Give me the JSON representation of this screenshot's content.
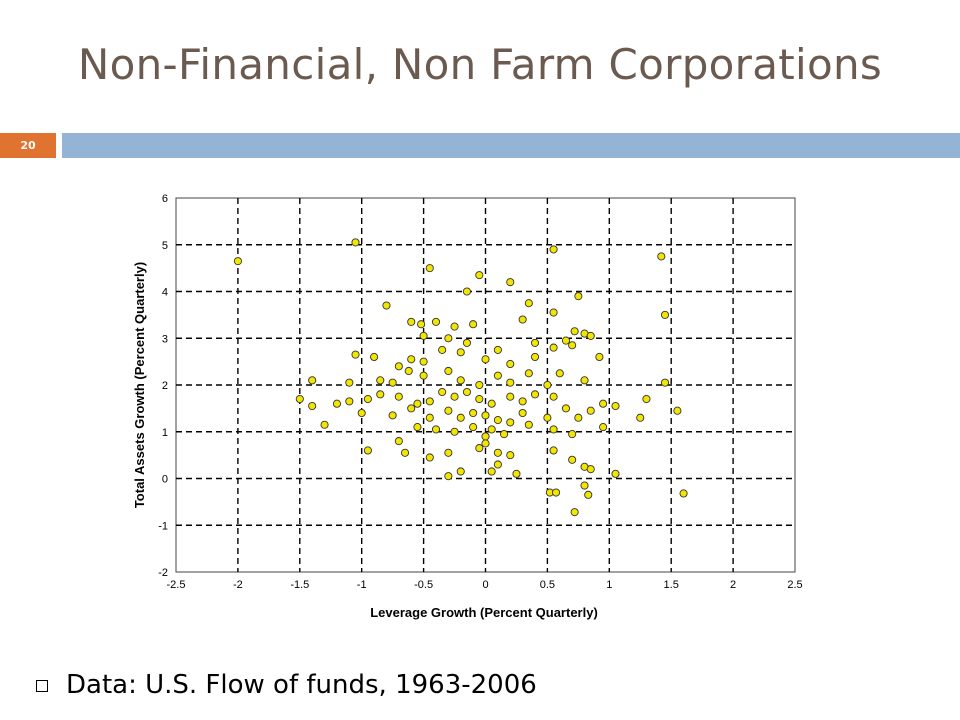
{
  "slide": {
    "title": "Non-Financial, Non Farm Corporations",
    "number": "20",
    "bullet": "Data: U.S. Flow of funds, 1963-2006",
    "accent_color": "#e0732f",
    "bar_color": "#93b4d5",
    "bullet_icon": "hollow-square-bullet-icon"
  },
  "chart_data": {
    "type": "scatter",
    "xlabel": "Leverage Growth (Percent Quarterly)",
    "ylabel": "Total Assets Growth (Percent Quarterly)",
    "xlim": [
      -2.5,
      2.5
    ],
    "ylim": [
      -2,
      6
    ],
    "xticks": [
      -2.5,
      -2,
      -1.5,
      -1,
      -0.5,
      0,
      0.5,
      1,
      1.5,
      2,
      2.5
    ],
    "yticks": [
      -2,
      -1,
      0,
      1,
      2,
      3,
      4,
      5,
      6
    ],
    "grid": "dashed",
    "point_color": "#f2e600",
    "points": [
      [
        -2.0,
        4.65
      ],
      [
        -1.05,
        5.05
      ],
      [
        -0.45,
        4.5
      ],
      [
        -0.05,
        4.35
      ],
      [
        0.2,
        4.2
      ],
      [
        0.55,
        4.9
      ],
      [
        1.42,
        4.75
      ],
      [
        -0.8,
        3.7
      ],
      [
        -0.15,
        4.0
      ],
      [
        0.35,
        3.75
      ],
      [
        0.75,
        3.9
      ],
      [
        1.45,
        3.5
      ],
      [
        -0.6,
        3.35
      ],
      [
        -0.52,
        3.3
      ],
      [
        -0.4,
        3.35
      ],
      [
        -0.25,
        3.25
      ],
      [
        -0.1,
        3.3
      ],
      [
        0.3,
        3.4
      ],
      [
        0.55,
        3.55
      ],
      [
        0.72,
        3.15
      ],
      [
        0.8,
        3.1
      ],
      [
        -0.5,
        3.05
      ],
      [
        -0.3,
        3.0
      ],
      [
        -0.15,
        2.9
      ],
      [
        0.1,
        2.75
      ],
      [
        0.4,
        2.9
      ],
      [
        0.55,
        2.8
      ],
      [
        0.65,
        2.95
      ],
      [
        0.85,
        3.05
      ],
      [
        -1.05,
        2.65
      ],
      [
        -0.9,
        2.6
      ],
      [
        -0.7,
        2.4
      ],
      [
        -0.6,
        2.55
      ],
      [
        -0.5,
        2.5
      ],
      [
        -0.35,
        2.75
      ],
      [
        -0.2,
        2.7
      ],
      [
        0.0,
        2.55
      ],
      [
        0.2,
        2.45
      ],
      [
        0.4,
        2.6
      ],
      [
        0.7,
        2.85
      ],
      [
        0.92,
        2.6
      ],
      [
        -1.4,
        2.1
      ],
      [
        -1.1,
        2.05
      ],
      [
        -0.85,
        2.1
      ],
      [
        -0.75,
        2.05
      ],
      [
        -0.62,
        2.3
      ],
      [
        -0.5,
        2.2
      ],
      [
        -0.3,
        2.3
      ],
      [
        -0.2,
        2.1
      ],
      [
        -0.05,
        2.0
      ],
      [
        0.1,
        2.2
      ],
      [
        0.2,
        2.05
      ],
      [
        0.35,
        2.25
      ],
      [
        0.5,
        2.0
      ],
      [
        0.6,
        2.25
      ],
      [
        0.8,
        2.1
      ],
      [
        1.45,
        2.05
      ],
      [
        -1.5,
        1.7
      ],
      [
        -1.4,
        1.55
      ],
      [
        -1.2,
        1.6
      ],
      [
        -1.1,
        1.65
      ],
      [
        -0.95,
        1.7
      ],
      [
        -0.85,
        1.8
      ],
      [
        -0.7,
        1.75
      ],
      [
        -0.55,
        1.6
      ],
      [
        -0.45,
        1.65
      ],
      [
        -0.35,
        1.85
      ],
      [
        -0.25,
        1.75
      ],
      [
        -0.15,
        1.85
      ],
      [
        -0.05,
        1.7
      ],
      [
        0.05,
        1.6
      ],
      [
        0.2,
        1.75
      ],
      [
        0.3,
        1.65
      ],
      [
        0.4,
        1.8
      ],
      [
        0.55,
        1.75
      ],
      [
        0.65,
        1.5
      ],
      [
        0.85,
        1.45
      ],
      [
        0.95,
        1.6
      ],
      [
        1.05,
        1.55
      ],
      [
        1.3,
        1.7
      ],
      [
        -1.3,
        1.15
      ],
      [
        -1.0,
        1.4
      ],
      [
        -0.75,
        1.35
      ],
      [
        -0.6,
        1.5
      ],
      [
        -0.45,
        1.3
      ],
      [
        -0.3,
        1.45
      ],
      [
        -0.2,
        1.3
      ],
      [
        -0.1,
        1.4
      ],
      [
        0.0,
        1.35
      ],
      [
        0.1,
        1.25
      ],
      [
        0.2,
        1.2
      ],
      [
        0.3,
        1.4
      ],
      [
        0.5,
        1.3
      ],
      [
        0.75,
        1.3
      ],
      [
        1.25,
        1.3
      ],
      [
        1.55,
        1.45
      ],
      [
        -0.7,
        0.8
      ],
      [
        -0.55,
        1.1
      ],
      [
        -0.4,
        1.05
      ],
      [
        -0.25,
        1.0
      ],
      [
        -0.1,
        1.1
      ],
      [
        0.0,
        0.9
      ],
      [
        0.05,
        1.05
      ],
      [
        0.15,
        0.95
      ],
      [
        0.35,
        1.15
      ],
      [
        0.55,
        1.05
      ],
      [
        0.7,
        0.95
      ],
      [
        0.95,
        1.1
      ],
      [
        -0.95,
        0.6
      ],
      [
        -0.65,
        0.55
      ],
      [
        -0.45,
        0.45
      ],
      [
        -0.3,
        0.55
      ],
      [
        -0.05,
        0.65
      ],
      [
        0.0,
        0.75
      ],
      [
        0.1,
        0.55
      ],
      [
        0.2,
        0.5
      ],
      [
        -0.3,
        0.05
      ],
      [
        -0.2,
        0.15
      ],
      [
        0.05,
        0.15
      ],
      [
        0.1,
        0.3
      ],
      [
        0.25,
        0.1
      ],
      [
        0.55,
        0.6
      ],
      [
        0.7,
        0.4
      ],
      [
        0.8,
        0.25
      ],
      [
        0.85,
        0.2
      ],
      [
        1.05,
        0.1
      ],
      [
        0.8,
        -0.15
      ],
      [
        0.52,
        -0.3
      ],
      [
        0.57,
        -0.3
      ],
      [
        0.83,
        -0.35
      ],
      [
        1.6,
        -0.32
      ],
      [
        0.72,
        -0.72
      ]
    ]
  }
}
